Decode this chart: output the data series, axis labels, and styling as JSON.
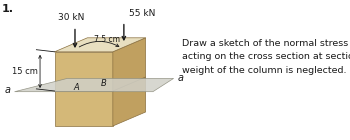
{
  "problem_number": "1.",
  "load1_label": "30 kN",
  "load2_label": "55 kN",
  "dim1_label": "7.5 cm",
  "dim2_label": "15 cm",
  "section_label": "a",
  "point_A": "A",
  "point_B": "B",
  "description": "Draw a sketch of the normal stress distribution\nacting on the cross section at section a-a.  The\nweight of the column is neglected.",
  "bg_color": "#f0ede6",
  "box_face_top": "#e8dfc0",
  "box_face_front": "#d4b878",
  "box_face_right": "#c0a060",
  "cut_plane_color": "#d0d0c8",
  "cut_plane_alpha": 0.85,
  "arrow_color": "#1a1a1a",
  "text_color": "#1a1a1a",
  "white": "#ffffff",
  "figsize": [
    3.5,
    1.4
  ],
  "dpi": 100
}
